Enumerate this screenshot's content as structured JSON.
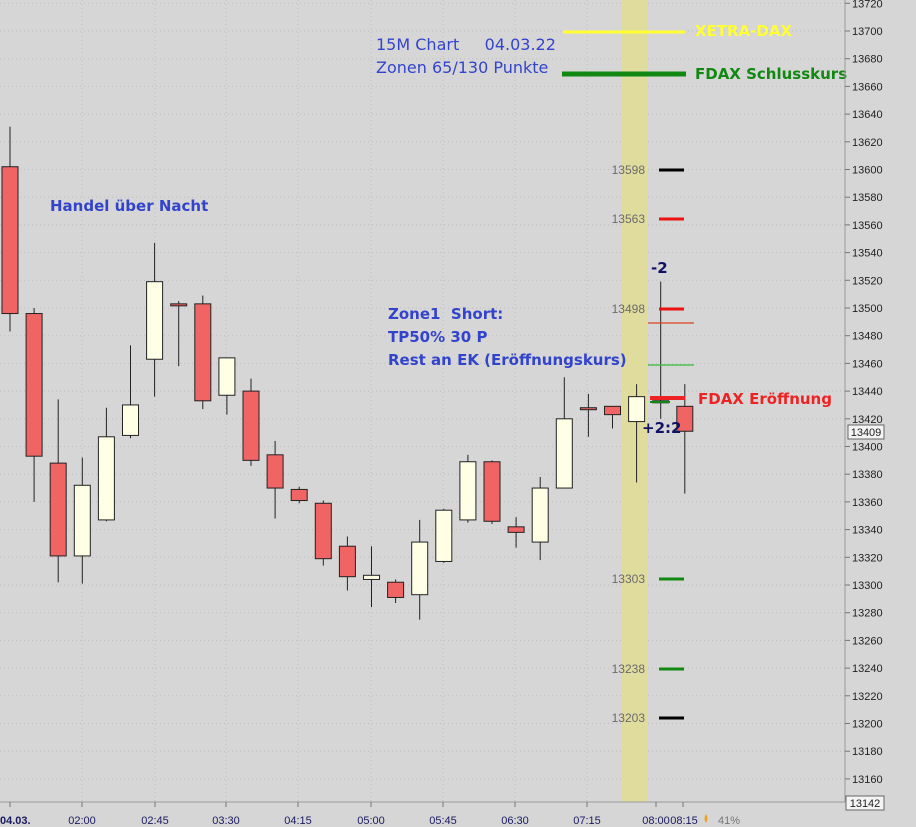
{
  "chart_data": {
    "type": "candlestick",
    "title": "15M Chart     04.03.22",
    "subtitle": "Zonen 65/130 Punkte",
    "ylim": [
      13140,
      13722
    ],
    "y_ticks": [
      13160,
      13180,
      13200,
      13220,
      13240,
      13260,
      13280,
      13300,
      13320,
      13340,
      13360,
      13380,
      13400,
      13420,
      13440,
      13460,
      13480,
      13500,
      13520,
      13540,
      13560,
      13580,
      13600,
      13620,
      13640,
      13660,
      13680,
      13700,
      13720
    ],
    "x_ticks": [
      "04.03.",
      "02:00",
      "02:45",
      "03:30",
      "04:15",
      "05:00",
      "05:45",
      "06:30",
      "07:15",
      "08:00",
      "08:15"
    ],
    "candles": [
      {
        "o": 13602,
        "h": 13631,
        "l": 13483,
        "c": 13496
      },
      {
        "o": 13496,
        "h": 13500,
        "l": 13360,
        "c": 13393
      },
      {
        "o": 13388,
        "h": 13434,
        "l": 13302,
        "c": 13321
      },
      {
        "o": 13321,
        "h": 13392,
        "l": 13301,
        "c": 13372
      },
      {
        "o": 13347,
        "h": 13428,
        "l": 13346,
        "c": 13407
      },
      {
        "o": 13408,
        "h": 13473,
        "l": 13406,
        "c": 13430
      },
      {
        "o": 13463,
        "h": 13547,
        "l": 13436,
        "c": 13519
      },
      {
        "o": 13503,
        "h": 13505,
        "l": 13458,
        "c": 13502
      },
      {
        "o": 13503,
        "h": 13509,
        "l": 13427,
        "c": 13433
      },
      {
        "o": 13437,
        "h": 13460,
        "l": 13423,
        "c": 13464
      },
      {
        "o": 13440,
        "h": 13449,
        "l": 13386,
        "c": 13390
      },
      {
        "o": 13394,
        "h": 13404,
        "l": 13348,
        "c": 13370
      },
      {
        "o": 13369,
        "h": 13371,
        "l": 13359,
        "c": 13361
      },
      {
        "o": 13359,
        "h": 13361,
        "l": 13314,
        "c": 13319
      },
      {
        "o": 13328,
        "h": 13335,
        "l": 13296,
        "c": 13306
      },
      {
        "o": 13304,
        "h": 13328,
        "l": 13284,
        "c": 13307
      },
      {
        "o": 13302,
        "h": 13304,
        "l": 13287,
        "c": 13291
      },
      {
        "o": 13293,
        "h": 13347,
        "l": 13275,
        "c": 13331
      },
      {
        "o": 13317,
        "h": 13355,
        "l": 13316,
        "c": 13354
      },
      {
        "o": 13347,
        "h": 13394,
        "l": 13345,
        "c": 13389
      },
      {
        "o": 13389,
        "h": 13390,
        "l": 13344,
        "c": 13346
      },
      {
        "o": 13342,
        "h": 13349,
        "l": 13327,
        "c": 13338
      },
      {
        "o": 13331,
        "h": 13378,
        "l": 13318,
        "c": 13370
      },
      {
        "o": 13370,
        "h": 13450,
        "l": 13370,
        "c": 13420
      },
      {
        "o": 13428,
        "h": 13438,
        "l": 13407,
        "c": 13427
      },
      {
        "o": 13429,
        "h": 13425,
        "l": 13413,
        "c": 13423
      },
      {
        "o": 13418,
        "h": 13445,
        "l": 13374,
        "c": 13436
      },
      {
        "o": 13432,
        "h": 13519,
        "l": 13420,
        "c": 13433
      },
      {
        "o": 13429,
        "h": 13445,
        "l": 13366,
        "c": 13411
      }
    ],
    "current_price": "13409",
    "bottom_value": "13142",
    "level_labels": [
      "13598",
      "13563",
      "13498",
      "13303",
      "13238",
      "13203"
    ],
    "legend": {
      "xetra": "XETRA-DAX",
      "schluss": "FDAX Schlusskurs",
      "eroeffnung": "FDAX Eröffnung"
    },
    "annotations": {
      "night": "Handel über Nacht",
      "zone_line1": "Zone1  Short:",
      "zone_line2": "TP50% 30 P",
      "zone_line3": "Rest an EK (Eröffnungskurs)",
      "minus": "-2",
      "plus": "+2:2"
    },
    "status_percent": "41%",
    "colors": {
      "bull": "#ffffe6",
      "bear": "#f06464",
      "xetra": "#ffff33",
      "schluss": "#118811",
      "eroeffnung": "#ee2222",
      "annotation": "#3344cc",
      "highlight": "#e0dc9e"
    }
  }
}
